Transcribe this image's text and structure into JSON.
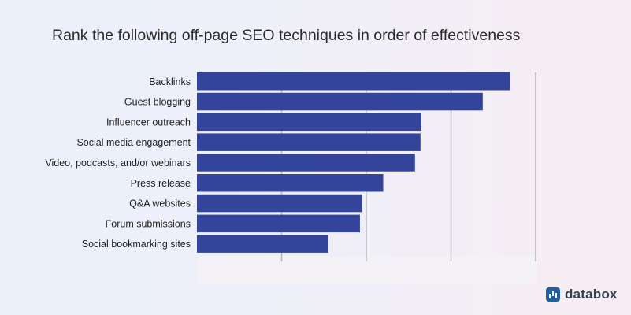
{
  "chart_data": {
    "type": "bar",
    "orientation": "horizontal",
    "title": "Rank the following off-page SEO techniques in order of effectiveness",
    "categories": [
      "Backlinks",
      "Guest blogging",
      "Influencer outreach",
      "Social media engagement",
      "Video, podcasts, and/or webinars",
      "Press release",
      "Q&A websites",
      "Forum submissions",
      "Social bookmarking sites"
    ],
    "values": [
      7.4,
      6.75,
      5.3,
      5.28,
      5.15,
      4.4,
      3.9,
      3.85,
      3.1
    ],
    "xlim": [
      0,
      8
    ],
    "grid": true,
    "bar_color": "#33449a"
  },
  "brand": {
    "name": "databox",
    "logo_icon": "databox-logo-icon",
    "logo_color": "#1f5fa8"
  }
}
